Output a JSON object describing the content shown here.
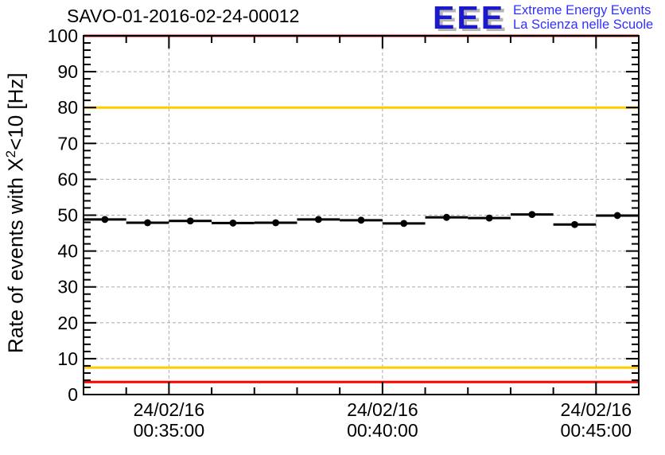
{
  "header": {
    "title": "SAVO-01-2016-02-24-00012",
    "logo": {
      "acronym": "EEE",
      "line1": "Extreme Energy Events",
      "line2": "La Scienza nelle Scuole",
      "acronym_color": "#1a1acc",
      "text_color": "#3030ff",
      "shadow_color": "#b5b5b5"
    }
  },
  "chart_data": {
    "type": "scatter",
    "title": "SAVO-01-2016-02-24-00012",
    "ylabel": "Rate of events with X^2<10 [Hz]",
    "ylabel_parts": {
      "prefix": "Rate of events with X",
      "sup": "2",
      "suffix": "<10 [Hz]"
    },
    "ylim": [
      0,
      100
    ],
    "y_major_step": 10,
    "y_minor_step": 2,
    "y_tick_labels": [
      "0",
      "10",
      "20",
      "30",
      "40",
      "50",
      "60",
      "70",
      "80",
      "90",
      "100"
    ],
    "xlim": [
      "00:33:00",
      "00:46:00"
    ],
    "x_minor_step_minutes": 1,
    "x_major_labels": [
      {
        "date": "24/02/16",
        "time": "00:35:00"
      },
      {
        "date": "24/02/16",
        "time": "00:40:00"
      },
      {
        "date": "24/02/16",
        "time": "00:45:00"
      }
    ],
    "grid": {
      "show": true,
      "style": "dashed",
      "color": "#aaaaaa"
    },
    "points": {
      "bin_width_minutes": 1,
      "times": [
        "00:33:30",
        "00:34:30",
        "00:35:30",
        "00:36:30",
        "00:37:30",
        "00:38:30",
        "00:39:30",
        "00:40:30",
        "00:41:30",
        "00:42:30",
        "00:43:30",
        "00:44:30",
        "00:45:30"
      ],
      "values": [
        48.8,
        47.9,
        48.4,
        47.8,
        47.9,
        48.8,
        48.6,
        47.7,
        49.4,
        49.2,
        50.2,
        47.4,
        49.9
      ]
    },
    "threshold_lines": [
      {
        "value": 100,
        "color": "#ff0000"
      },
      {
        "value": 80,
        "color": "#ffcc00"
      },
      {
        "value": 7.5,
        "color": "#ffcc00"
      },
      {
        "value": 3.5,
        "color": "#ff0000"
      }
    ],
    "marker": {
      "shape": "filled-circle",
      "color": "#000000"
    },
    "axis_color": "#000000"
  }
}
